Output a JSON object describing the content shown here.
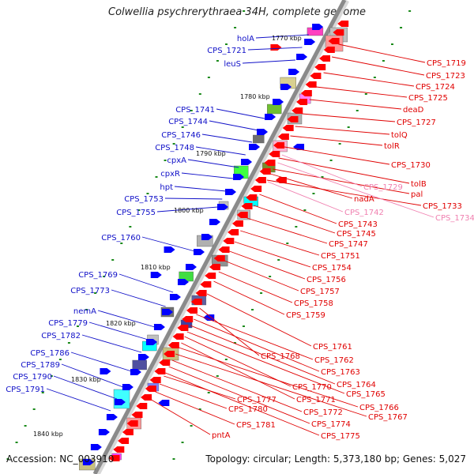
{
  "title": "Colwellia psychrerythraea 34H, complete genome",
  "accession": "Accession: NC_003910",
  "summary": "Topology: circular; Length: 5,373,180 bp; Genes: 5,027",
  "colors": {
    "backbone": "#8a8a8a",
    "forward_label": "#1010c8",
    "reverse_label": "#e00000",
    "pink_label": "#f080b0",
    "ticks": "#1a8a1a"
  },
  "kbp_ticks": [
    "1770 kbp",
    "1780 kbp",
    "1790 kbp",
    "1800 kbp",
    "1810 kbp",
    "1820 kbp",
    "1830 kbp",
    "1840 kbp"
  ],
  "left_genes": [
    "holA",
    "CPS_1721",
    "leuS",
    "CPS_1741",
    "CPS_1744",
    "CPS_1746",
    "CPS_1748",
    "cpxA",
    "cpxR",
    "hpt",
    "CPS_1753",
    "CPS_1755",
    "CPS_1760",
    "CPS_1769",
    "CPS_1773",
    "nemA",
    "CPS_1779",
    "CPS_1782",
    "CPS_1786",
    "CPS_1789",
    "CPS_1790",
    "CPS_1791"
  ],
  "right_genes": [
    "CPS_1719",
    "CPS_1723",
    "CPS_1724",
    "CPS_1725",
    "deaD",
    "CPS_1727",
    "tolQ",
    "tolR",
    "CPS_1730",
    "tolB",
    "pal",
    "CPS_1733",
    "nadA",
    "CPS_1743",
    "CPS_1745",
    "CPS_1747",
    "CPS_1751",
    "CPS_1754",
    "CPS_1756",
    "CPS_1757",
    "CPS_1758",
    "CPS_1759",
    "CPS_1761",
    "CPS_1768",
    "CPS_1762",
    "CPS_1763",
    "CPS_1764",
    "CPS_1765",
    "CPS_1770",
    "CPS_1771",
    "CPS_1766",
    "CPS_1767",
    "CPS_1772",
    "CPS_1774",
    "CPS_1777",
    "CPS_1780",
    "CPS_1775",
    "CPS_1781",
    "pntA"
  ],
  "pink_genes": [
    "CPS_1729",
    "CPS_1742",
    "CPS_1734"
  ]
}
